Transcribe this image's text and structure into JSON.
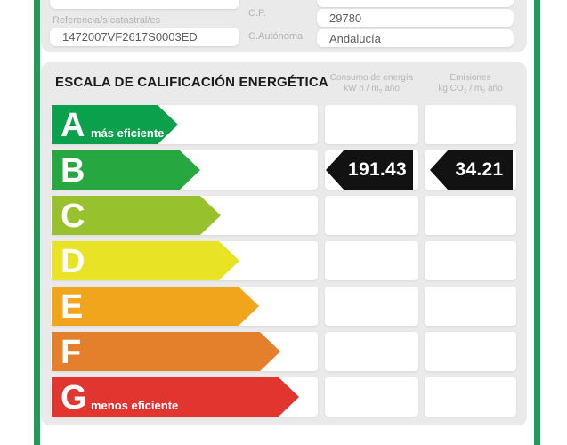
{
  "colors": {
    "page_border_green": "#1f9d58",
    "panel_gray": "#eaeaea",
    "result_tag_black": "#121212"
  },
  "property_form": {
    "catastral_label": "Referencia/s catastral/es",
    "catastral_value": "1472007VF2617S0003ED",
    "cp_label": "C.P.",
    "cp_value": "29780",
    "autonoma_label": "C.Autónoma",
    "autonoma_value": "Andalucía"
  },
  "scale": {
    "title": "ESCALA DE CALIFICACIÓN ENERGÉTICA",
    "columns": [
      {
        "title": "Consumo de energía",
        "unit_a": "kW h / m",
        "unit_sub_a": "2",
        "unit_b": " año"
      },
      {
        "title": "Emisiones",
        "unit_a": "kg CO",
        "unit_sub_a": "2",
        "unit_b": " / m",
        "unit_sub_b": "2",
        "unit_c": " año"
      }
    ],
    "ratings": [
      {
        "letter": "A",
        "note": "más eficiente",
        "color": "#0ba04b",
        "arrow_width": 142
      },
      {
        "letter": "B",
        "note": "",
        "color": "#27a73f",
        "arrow_width": 167
      },
      {
        "letter": "C",
        "note": "",
        "color": "#97c22d",
        "arrow_width": 190
      },
      {
        "letter": "D",
        "note": "",
        "color": "#e9e326",
        "arrow_width": 211
      },
      {
        "letter": "E",
        "note": "",
        "color": "#f0a51d",
        "arrow_width": 233
      },
      {
        "letter": "F",
        "note": "",
        "color": "#e4802b",
        "arrow_width": 257
      },
      {
        "letter": "G",
        "note": "menos eficiente",
        "color": "#e23530",
        "arrow_width": 278
      }
    ],
    "result": {
      "letter": "B",
      "consumo": "191.43",
      "emisiones": "34.21"
    }
  }
}
